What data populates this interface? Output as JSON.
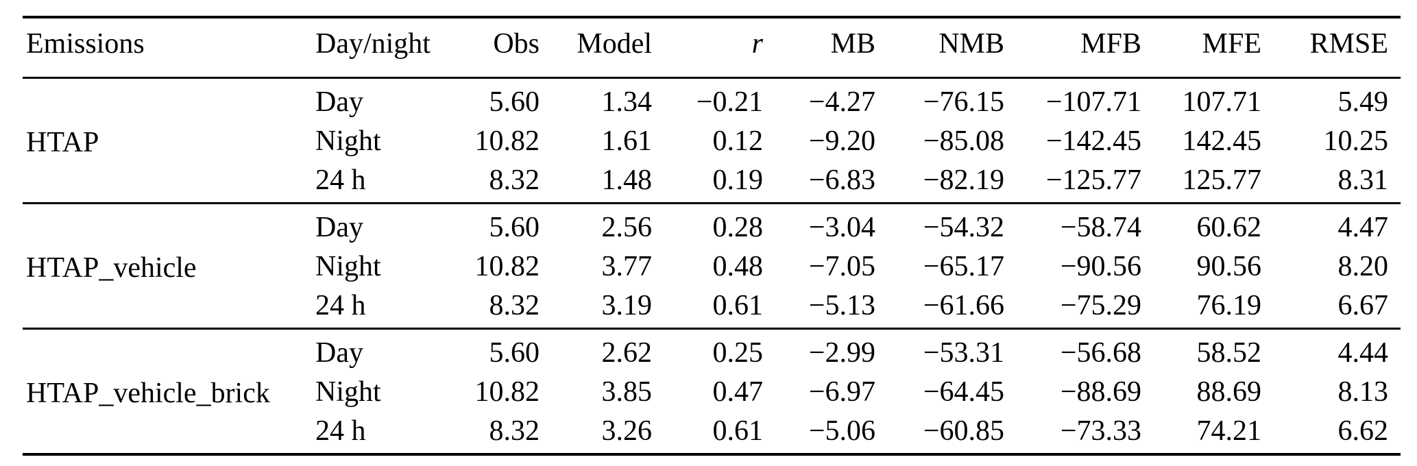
{
  "table": {
    "columns": [
      {
        "key": "emissions",
        "label": "Emissions"
      },
      {
        "key": "daynight",
        "label": "Day/night"
      },
      {
        "key": "obs",
        "label": "Obs"
      },
      {
        "key": "model",
        "label": "Model"
      },
      {
        "key": "r",
        "label": "r"
      },
      {
        "key": "mb",
        "label": "MB"
      },
      {
        "key": "nmb",
        "label": "NMB"
      },
      {
        "key": "mfb",
        "label": "MFB"
      },
      {
        "key": "mfe",
        "label": "MFE"
      },
      {
        "key": "rmse",
        "label": "RMSE"
      }
    ],
    "groups": [
      {
        "emissions": "HTAP",
        "rows": [
          {
            "daynight": "Day",
            "obs": "5.60",
            "model": "1.34",
            "r": "−0.21",
            "mb": "−4.27",
            "nmb": "−76.15",
            "mfb": "−107.71",
            "mfe": "107.71",
            "rmse": "5.49"
          },
          {
            "daynight": "Night",
            "obs": "10.82",
            "model": "1.61",
            "r": "0.12",
            "mb": "−9.20",
            "nmb": "−85.08",
            "mfb": "−142.45",
            "mfe": "142.45",
            "rmse": "10.25"
          },
          {
            "daynight": "24 h",
            "obs": "8.32",
            "model": "1.48",
            "r": "0.19",
            "mb": "−6.83",
            "nmb": "−82.19",
            "mfb": "−125.77",
            "mfe": "125.77",
            "rmse": "8.31"
          }
        ]
      },
      {
        "emissions": "HTAP_vehicle",
        "rows": [
          {
            "daynight": "Day",
            "obs": "5.60",
            "model": "2.56",
            "r": "0.28",
            "mb": "−3.04",
            "nmb": "−54.32",
            "mfb": "−58.74",
            "mfe": "60.62",
            "rmse": "4.47"
          },
          {
            "daynight": "Night",
            "obs": "10.82",
            "model": "3.77",
            "r": "0.48",
            "mb": "−7.05",
            "nmb": "−65.17",
            "mfb": "−90.56",
            "mfe": "90.56",
            "rmse": "8.20"
          },
          {
            "daynight": "24 h",
            "obs": "8.32",
            "model": "3.19",
            "r": "0.61",
            "mb": "−5.13",
            "nmb": "−61.66",
            "mfb": "−75.29",
            "mfe": "76.19",
            "rmse": "6.67"
          }
        ]
      },
      {
        "emissions": "HTAP_vehicle_brick",
        "rows": [
          {
            "daynight": "Day",
            "obs": "5.60",
            "model": "2.62",
            "r": "0.25",
            "mb": "−2.99",
            "nmb": "−53.31",
            "mfb": "−56.68",
            "mfe": "58.52",
            "rmse": "4.44"
          },
          {
            "daynight": "Night",
            "obs": "10.82",
            "model": "3.85",
            "r": "0.47",
            "mb": "−6.97",
            "nmb": "−64.45",
            "mfb": "−88.69",
            "mfe": "88.69",
            "rmse": "8.13"
          },
          {
            "daynight": "24 h",
            "obs": "8.32",
            "model": "3.26",
            "r": "0.61",
            "mb": "−5.06",
            "nmb": "−60.85",
            "mfb": "−73.33",
            "mfe": "74.21",
            "rmse": "6.62"
          }
        ]
      }
    ]
  },
  "colors": {
    "text": "#000000",
    "rule": "#000000",
    "background": "#ffffff"
  }
}
